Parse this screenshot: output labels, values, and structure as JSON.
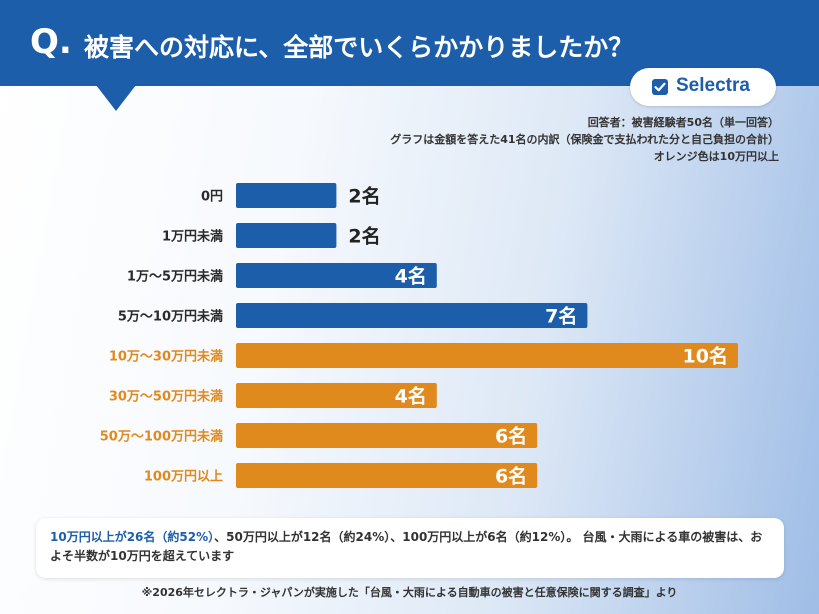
{
  "header": {
    "q_mark": "Q.",
    "title": "被害への対応に、全部でいくらかかりましたか？"
  },
  "logo": {
    "name": "Selectra",
    "check_icon": "check-box-icon"
  },
  "notes": [
    "回答者：被害経験者50名（単一回答）",
    "グラフは金額を答えた41名の内訳（保険金で支払われた分と自己負担の合計）",
    "オレンジ色は10万円以上"
  ],
  "colors": {
    "blue": "#1c5ea9",
    "orange": "#e08a1e",
    "header": "#1c5ea9"
  },
  "chart_data": {
    "type": "bar",
    "orientation": "horizontal",
    "categories": [
      "0円",
      "1万円未満",
      "1万〜5万円未満",
      "5万〜10万円未満",
      "10万〜30万円未満",
      "30万〜50万円未満",
      "50万〜100万円未満",
      "100万円以上"
    ],
    "values": [
      2,
      2,
      4,
      7,
      10,
      4,
      6,
      6
    ],
    "value_labels": [
      "2名",
      "2名",
      "4名",
      "7名",
      "10名",
      "4名",
      "6名",
      "6名"
    ],
    "highlight": [
      false,
      false,
      false,
      false,
      true,
      true,
      true,
      true
    ],
    "xlim": [
      0,
      10
    ],
    "grid": false
  },
  "summary": {
    "highlight": "10万円以上が26名（約52%）",
    "rest": "、50万円以上が12名（約24%）、100万円以上が6名（約12%）。 台風・大雨による車の被害は、およそ半数が10万円を超えています"
  },
  "footnote": "※2026年セレクトラ・ジャパンが実施した「台風・大雨による自動車の被害と任意保険に関する調査」より"
}
